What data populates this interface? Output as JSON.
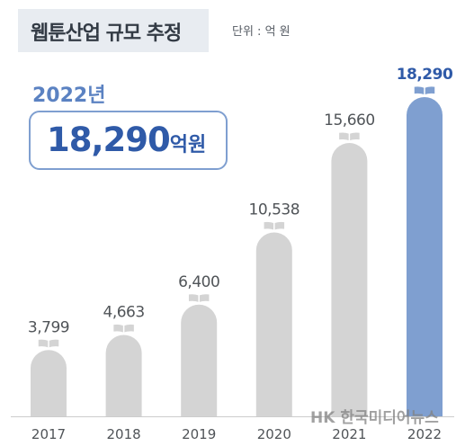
{
  "title": "웹툰산업 규모 추정",
  "unit": "단위 : 억 원",
  "highlight": {
    "year": "2022년",
    "value": "18,290",
    "unit": "억원"
  },
  "watermark": "HK 한국미디어뉴스",
  "colors": {
    "bar": "#d4d4d4",
    "highlight_bar": "#7f9fd0",
    "highlight_text": "#2f5aa8",
    "axis": "#cccccc"
  },
  "chart_data": {
    "type": "bar",
    "categories": [
      "2017",
      "2018",
      "2019",
      "2020",
      "2021",
      "2022"
    ],
    "values": [
      3799,
      4663,
      6400,
      10538,
      15660,
      18290
    ],
    "labels": [
      "3,799",
      "4,663",
      "6,400",
      "10,538",
      "15,660",
      "18,290"
    ],
    "highlight_index": 5,
    "icon": "open-book-icon"
  }
}
